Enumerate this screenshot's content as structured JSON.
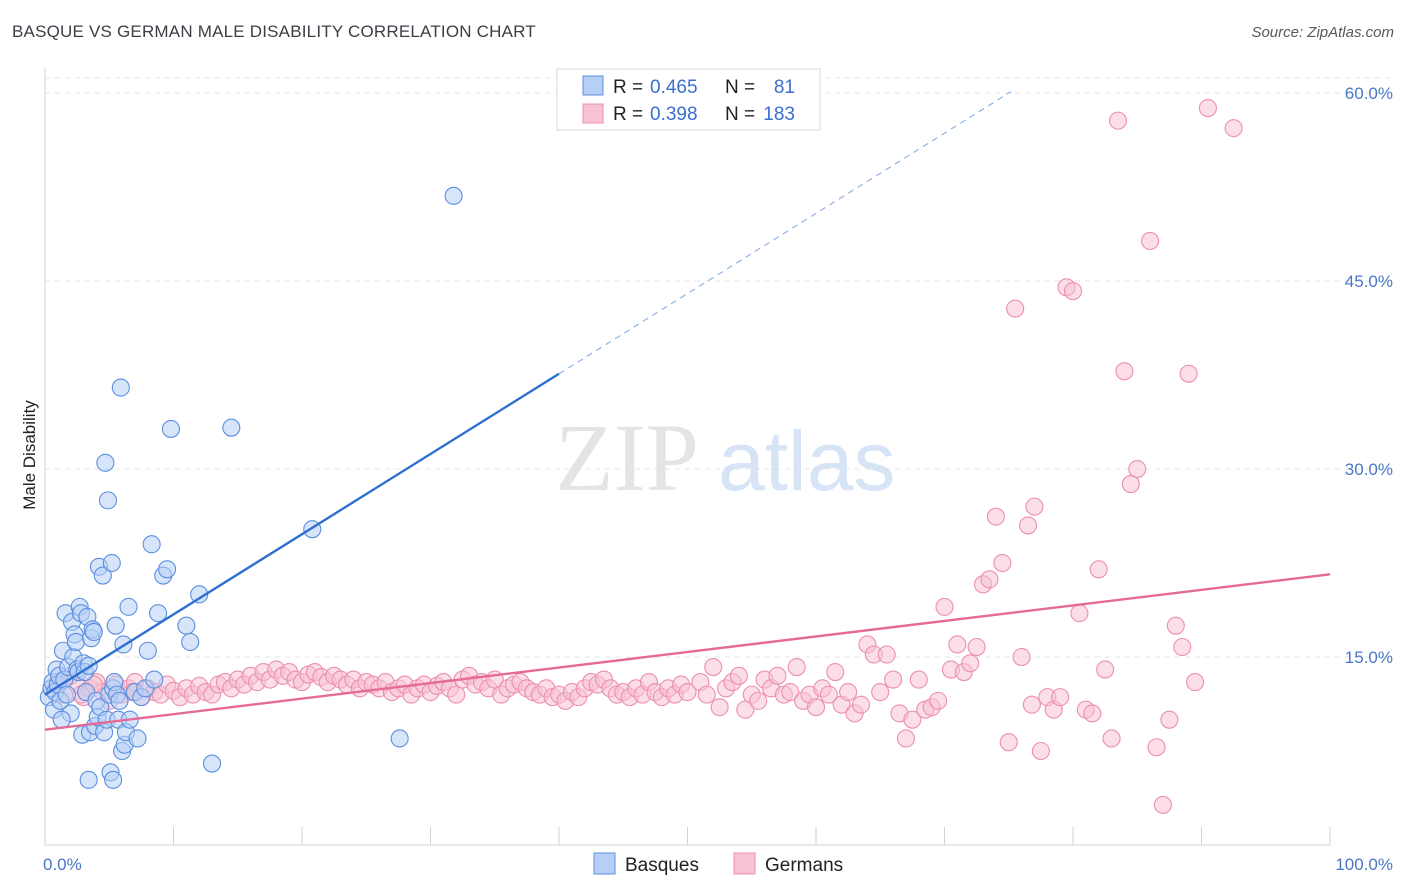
{
  "title": "BASQUE VS GERMAN MALE DISABILITY CORRELATION CHART",
  "source": "Source: ZipAtlas.com",
  "watermark": {
    "zip": "ZIP",
    "atlas": "atlas"
  },
  "chart_data": {
    "type": "scatter",
    "ylabel": "Male Disability",
    "xlim": [
      0,
      100
    ],
    "ylim": [
      0,
      62
    ],
    "x_ticks": [
      {
        "v": 0,
        "label": "0.0%"
      },
      {
        "v": 100,
        "label": "100.0%"
      }
    ],
    "y_ticks": [
      {
        "v": 15,
        "label": "15.0%"
      },
      {
        "v": 30,
        "label": "30.0%"
      },
      {
        "v": 45,
        "label": "45.0%"
      },
      {
        "v": 60,
        "label": "60.0%"
      }
    ],
    "grid": true,
    "legend": {
      "placement": "top-center",
      "entries": [
        {
          "r_label": "R =",
          "r_value": "0.465",
          "n_label": "N =",
          "n_value": "81"
        },
        {
          "r_label": "R =",
          "r_value": "0.398",
          "n_label": "N =",
          "n_value": "183"
        }
      ]
    },
    "colors": {
      "basques_fill": "#b7cff5",
      "basques_stroke": "#5b8fe0",
      "basques_line": "#2f6fcf",
      "germans_fill": "#f7c3d3",
      "germans_stroke": "#ec8fae",
      "germans_line": "#e56b94"
    },
    "series": [
      {
        "name": "Basques",
        "trend": {
          "x0": 0,
          "y0": 12.0,
          "x1": 40,
          "y1": 37.6,
          "x_dash_end": 75.2
        },
        "points": [
          [
            0.3,
            11.8
          ],
          [
            0.5,
            12.5
          ],
          [
            0.6,
            13.0
          ],
          [
            0.7,
            10.8
          ],
          [
            0.8,
            12.2
          ],
          [
            0.9,
            14.0
          ],
          [
            1.0,
            12.8
          ],
          [
            1.1,
            13.5
          ],
          [
            1.2,
            11.5
          ],
          [
            1.4,
            15.5
          ],
          [
            1.5,
            13.2
          ],
          [
            1.6,
            18.5
          ],
          [
            1.7,
            12.0
          ],
          [
            1.8,
            14.2
          ],
          [
            2.0,
            10.5
          ],
          [
            2.1,
            17.8
          ],
          [
            2.2,
            15.0
          ],
          [
            2.3,
            16.8
          ],
          [
            2.4,
            16.2
          ],
          [
            2.5,
            14.0
          ],
          [
            2.6,
            13.8
          ],
          [
            2.7,
            19.0
          ],
          [
            2.8,
            18.5
          ],
          [
            2.9,
            8.8
          ],
          [
            3.0,
            14.5
          ],
          [
            3.1,
            13.8
          ],
          [
            3.2,
            12.2
          ],
          [
            3.3,
            18.2
          ],
          [
            3.4,
            14.3
          ],
          [
            3.5,
            9.0
          ],
          [
            3.6,
            16.5
          ],
          [
            3.7,
            17.2
          ],
          [
            3.8,
            17.0
          ],
          [
            3.9,
            9.5
          ],
          [
            4.0,
            11.5
          ],
          [
            4.1,
            10.2
          ],
          [
            4.2,
            22.2
          ],
          [
            4.3,
            11.0
          ],
          [
            4.5,
            21.5
          ],
          [
            4.6,
            9.0
          ],
          [
            4.7,
            30.5
          ],
          [
            4.8,
            10.0
          ],
          [
            4.9,
            27.5
          ],
          [
            5.0,
            12.0
          ],
          [
            5.1,
            5.8
          ],
          [
            5.2,
            22.5
          ],
          [
            5.3,
            12.5
          ],
          [
            5.4,
            13.0
          ],
          [
            5.5,
            17.5
          ],
          [
            5.6,
            12.0
          ],
          [
            5.7,
            10.0
          ],
          [
            5.8,
            11.5
          ],
          [
            5.9,
            36.5
          ],
          [
            6.0,
            7.5
          ],
          [
            6.1,
            16.0
          ],
          [
            6.2,
            8.0
          ],
          [
            6.3,
            9.0
          ],
          [
            6.5,
            19.0
          ],
          [
            6.6,
            10.0
          ],
          [
            7.0,
            12.2
          ],
          [
            7.2,
            8.5
          ],
          [
            7.5,
            11.8
          ],
          [
            7.8,
            12.5
          ],
          [
            8.0,
            15.5
          ],
          [
            8.3,
            24.0
          ],
          [
            8.5,
            13.2
          ],
          [
            8.8,
            18.5
          ],
          [
            9.2,
            21.5
          ],
          [
            9.5,
            22.0
          ],
          [
            9.8,
            33.2
          ],
          [
            11.0,
            17.5
          ],
          [
            11.3,
            16.2
          ],
          [
            12.0,
            20.0
          ],
          [
            13.0,
            6.5
          ],
          [
            14.5,
            33.3
          ],
          [
            20.8,
            25.2
          ],
          [
            27.6,
            8.5
          ],
          [
            31.8,
            51.8
          ],
          [
            3.4,
            5.2
          ],
          [
            5.3,
            5.2
          ],
          [
            1.3,
            10.0
          ]
        ]
      },
      {
        "name": "Germans",
        "trend": {
          "x0": 0,
          "y0": 9.2,
          "x1": 100,
          "y1": 21.6
        },
        "points": [
          [
            0.5,
            12.5
          ],
          [
            1.0,
            13.0
          ],
          [
            1.5,
            12.0
          ],
          [
            2.0,
            13.5
          ],
          [
            2.5,
            12.8
          ],
          [
            3.0,
            11.8
          ],
          [
            3.5,
            12.5
          ],
          [
            4.0,
            13.0
          ],
          [
            4.5,
            12.2
          ],
          [
            5.0,
            11.5
          ],
          [
            5.5,
            12.8
          ],
          [
            6.0,
            12.0
          ],
          [
            6.5,
            12.5
          ],
          [
            7.0,
            13.0
          ],
          [
            7.5,
            11.8
          ],
          [
            8.0,
            12.5
          ],
          [
            8.5,
            12.2
          ],
          [
            9.0,
            12.0
          ],
          [
            9.5,
            12.8
          ],
          [
            10.0,
            12.3
          ],
          [
            10.5,
            11.8
          ],
          [
            11.0,
            12.5
          ],
          [
            11.5,
            12.0
          ],
          [
            12.0,
            12.7
          ],
          [
            12.5,
            12.2
          ],
          [
            13.0,
            12.0
          ],
          [
            13.5,
            12.8
          ],
          [
            14.0,
            13.0
          ],
          [
            14.5,
            12.5
          ],
          [
            15.0,
            13.2
          ],
          [
            15.5,
            12.8
          ],
          [
            16.0,
            13.5
          ],
          [
            16.5,
            13.0
          ],
          [
            17.0,
            13.8
          ],
          [
            17.5,
            13.2
          ],
          [
            18.0,
            14.0
          ],
          [
            18.5,
            13.5
          ],
          [
            19.0,
            13.8
          ],
          [
            19.5,
            13.2
          ],
          [
            20.0,
            13.0
          ],
          [
            20.5,
            13.6
          ],
          [
            21.0,
            13.8
          ],
          [
            21.5,
            13.4
          ],
          [
            22.0,
            13.0
          ],
          [
            22.5,
            13.5
          ],
          [
            23.0,
            13.2
          ],
          [
            23.5,
            12.8
          ],
          [
            24.0,
            13.2
          ],
          [
            24.5,
            12.5
          ],
          [
            25.0,
            13.0
          ],
          [
            25.5,
            12.8
          ],
          [
            26.0,
            12.5
          ],
          [
            26.5,
            13.0
          ],
          [
            27.0,
            12.2
          ],
          [
            27.5,
            12.5
          ],
          [
            28.0,
            12.8
          ],
          [
            28.5,
            12.0
          ],
          [
            29.0,
            12.5
          ],
          [
            29.5,
            12.8
          ],
          [
            30.0,
            12.2
          ],
          [
            30.5,
            12.7
          ],
          [
            31.0,
            13.0
          ],
          [
            31.5,
            12.5
          ],
          [
            32.0,
            12.0
          ],
          [
            32.5,
            13.2
          ],
          [
            33.0,
            13.5
          ],
          [
            33.5,
            12.8
          ],
          [
            34.0,
            13.0
          ],
          [
            34.5,
            12.5
          ],
          [
            35.0,
            13.2
          ],
          [
            35.5,
            12.0
          ],
          [
            36.0,
            12.5
          ],
          [
            36.5,
            12.8
          ],
          [
            37.0,
            13.0
          ],
          [
            37.5,
            12.5
          ],
          [
            38.0,
            12.2
          ],
          [
            38.5,
            12.0
          ],
          [
            39.0,
            12.5
          ],
          [
            39.5,
            11.8
          ],
          [
            40.0,
            12.0
          ],
          [
            40.5,
            11.5
          ],
          [
            41.0,
            12.2
          ],
          [
            41.5,
            11.8
          ],
          [
            42.0,
            12.5
          ],
          [
            42.5,
            13.0
          ],
          [
            43.0,
            12.8
          ],
          [
            43.5,
            13.2
          ],
          [
            44.0,
            12.5
          ],
          [
            44.5,
            12.0
          ],
          [
            45.0,
            12.2
          ],
          [
            45.5,
            11.8
          ],
          [
            46.0,
            12.5
          ],
          [
            46.5,
            12.0
          ],
          [
            47.0,
            13.0
          ],
          [
            47.5,
            12.2
          ],
          [
            48.0,
            11.8
          ],
          [
            48.5,
            12.5
          ],
          [
            49.0,
            12.0
          ],
          [
            49.5,
            12.8
          ],
          [
            50.0,
            12.2
          ],
          [
            51.0,
            13.0
          ],
          [
            51.5,
            12.0
          ],
          [
            52.0,
            14.2
          ],
          [
            52.5,
            11.0
          ],
          [
            53.0,
            12.5
          ],
          [
            53.5,
            13.0
          ],
          [
            54.0,
            13.5
          ],
          [
            54.5,
            10.8
          ],
          [
            55.0,
            12.0
          ],
          [
            55.5,
            11.5
          ],
          [
            56.0,
            13.2
          ],
          [
            56.5,
            12.5
          ],
          [
            57.0,
            13.5
          ],
          [
            57.5,
            12.0
          ],
          [
            58.0,
            12.2
          ],
          [
            58.5,
            14.2
          ],
          [
            59.0,
            11.5
          ],
          [
            59.5,
            12.0
          ],
          [
            60.0,
            11.0
          ],
          [
            60.5,
            12.5
          ],
          [
            61.0,
            12.0
          ],
          [
            61.5,
            13.8
          ],
          [
            62.0,
            11.2
          ],
          [
            62.5,
            12.2
          ],
          [
            63.0,
            10.5
          ],
          [
            63.5,
            11.2
          ],
          [
            64.0,
            16.0
          ],
          [
            64.5,
            15.2
          ],
          [
            65.0,
            12.2
          ],
          [
            65.5,
            15.2
          ],
          [
            66.0,
            13.2
          ],
          [
            66.5,
            10.5
          ],
          [
            67.0,
            8.5
          ],
          [
            67.5,
            10.0
          ],
          [
            68.0,
            13.2
          ],
          [
            68.5,
            10.8
          ],
          [
            69.0,
            11.0
          ],
          [
            69.5,
            11.5
          ],
          [
            70.0,
            19.0
          ],
          [
            70.5,
            14.0
          ],
          [
            71.0,
            16.0
          ],
          [
            71.5,
            13.8
          ],
          [
            72.0,
            14.5
          ],
          [
            72.5,
            15.8
          ],
          [
            73.0,
            20.8
          ],
          [
            73.5,
            21.2
          ],
          [
            74.0,
            26.2
          ],
          [
            74.5,
            22.5
          ],
          [
            75.0,
            8.2
          ],
          [
            75.5,
            42.8
          ],
          [
            76.0,
            15.0
          ],
          [
            76.5,
            25.5
          ],
          [
            77.0,
            27.0
          ],
          [
            77.5,
            7.5
          ],
          [
            78.0,
            11.8
          ],
          [
            78.5,
            10.8
          ],
          [
            79.0,
            11.8
          ],
          [
            79.5,
            44.5
          ],
          [
            80.0,
            44.2
          ],
          [
            80.5,
            18.5
          ],
          [
            81.0,
            10.8
          ],
          [
            81.5,
            10.5
          ],
          [
            82.0,
            22.0
          ],
          [
            82.5,
            14.0
          ],
          [
            83.0,
            8.5
          ],
          [
            83.5,
            57.8
          ],
          [
            84.0,
            37.8
          ],
          [
            84.5,
            28.8
          ],
          [
            85.0,
            30.0
          ],
          [
            86.0,
            48.2
          ],
          [
            86.5,
            7.8
          ],
          [
            87.0,
            3.2
          ],
          [
            87.5,
            10.0
          ],
          [
            88.0,
            17.5
          ],
          [
            88.5,
            15.8
          ],
          [
            89.0,
            37.6
          ],
          [
            89.5,
            13.0
          ],
          [
            90.5,
            58.8
          ],
          [
            92.5,
            57.2
          ],
          [
            76.8,
            11.2
          ],
          [
            6.8,
            12.2
          ],
          [
            3.8,
            12.8
          ],
          [
            2.8,
            12.0
          ]
        ]
      }
    ]
  }
}
